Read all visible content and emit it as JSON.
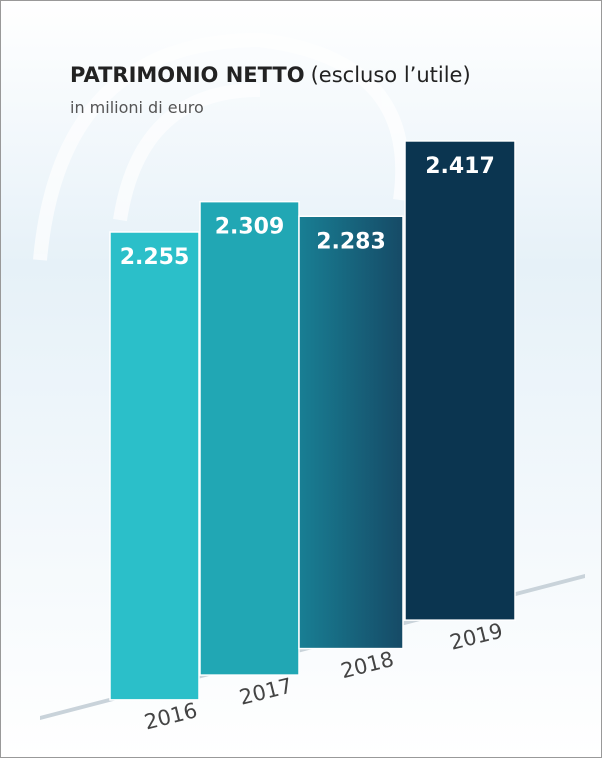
{
  "chart_data": {
    "type": "bar",
    "title": "PATRIMONIO NETTO",
    "title_suffix": "(escluso l’utile)",
    "subtitle": "in milioni di euro",
    "categories": [
      "2016",
      "2017",
      "2018",
      "2019"
    ],
    "values": [
      2255,
      2309,
      2283,
      2417
    ],
    "value_labels": [
      "2.255",
      "2.309",
      "2.283",
      "2.417"
    ],
    "colors": [
      "#2bbfc9",
      "#21a7b4",
      "#16728a",
      "#0b3550"
    ]
  }
}
